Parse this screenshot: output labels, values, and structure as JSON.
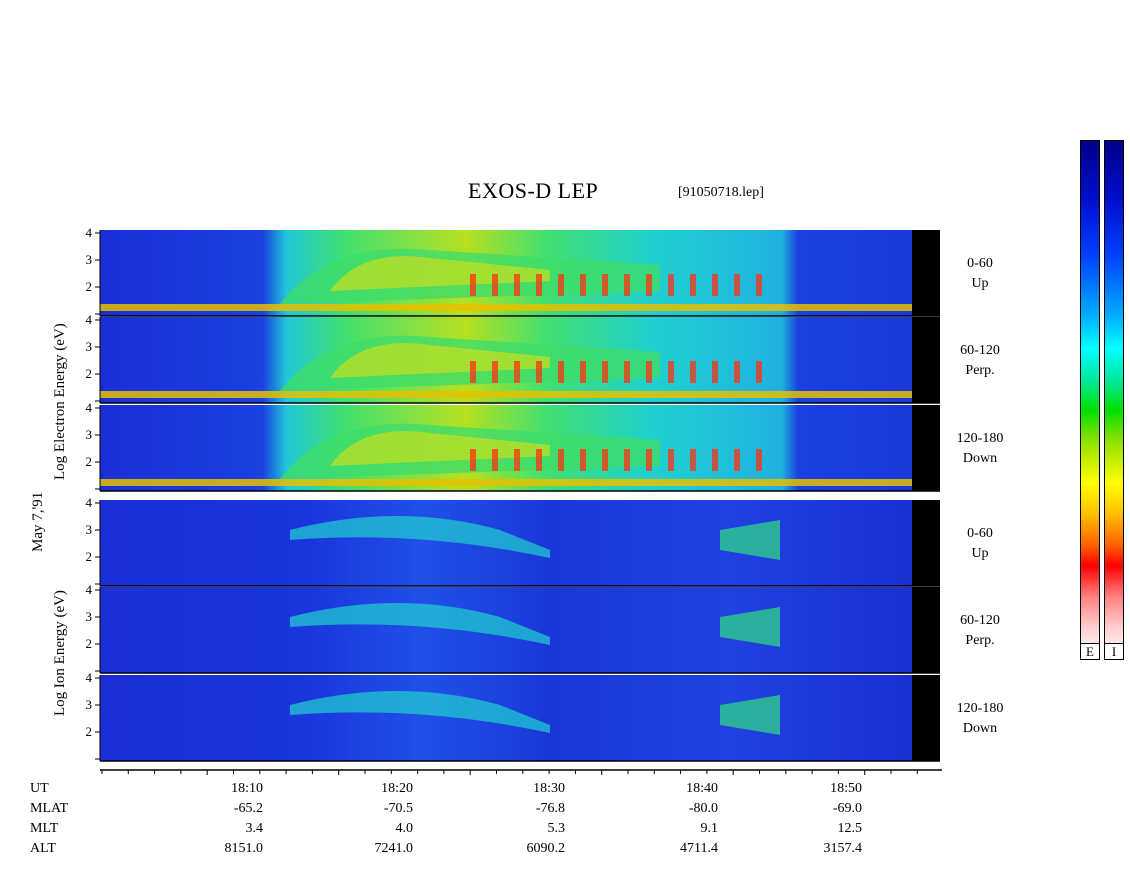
{
  "title": "EXOS-D LEP",
  "file_name": "[91050718.lep]",
  "date_label": "May  7,'91",
  "electron_ylabel": "Log  Electron  Energy (eV)",
  "ion_ylabel": "Log  Ion  Energy (eV)",
  "colors": {
    "black_band": "#000000",
    "panel_low": "#1a2fd6",
    "panel_mid": "#1bd7d0",
    "panel_high": "#e8e800",
    "panel_peak": "#ff2a00"
  },
  "chart_data": {
    "type": "heatmap",
    "x_axis": {
      "label": "UT",
      "tick_labels": [
        "18:10",
        "18:20",
        "18:30",
        "18:40",
        "18:50"
      ]
    },
    "y_ticks": [
      "4",
      "3",
      "2"
    ],
    "panels": [
      {
        "species": "Electron",
        "pitch_angle": "0-60",
        "direction": "Up"
      },
      {
        "species": "Electron",
        "pitch_angle": "60-120",
        "direction": "Perp."
      },
      {
        "species": "Electron",
        "pitch_angle": "120-180",
        "direction": "Down"
      },
      {
        "species": "Ion",
        "pitch_angle": "0-60",
        "direction": "Up"
      },
      {
        "species": "Ion",
        "pitch_angle": "60-120",
        "direction": "Perp."
      },
      {
        "species": "Ion",
        "pitch_angle": "120-180",
        "direction": "Down"
      }
    ],
    "ephemeris": [
      {
        "label": "MLAT",
        "values": [
          "-65.2",
          "-70.5",
          "-76.8",
          "-80.0",
          "-69.0"
        ]
      },
      {
        "label": "MLT",
        "values": [
          "3.4",
          "4.0",
          "5.3",
          "9.1",
          "12.5"
        ]
      },
      {
        "label": "ALT",
        "values": [
          "8151.0",
          "7241.0",
          "6090.2",
          "4711.4",
          "3157.4"
        ]
      }
    ],
    "colorbars": [
      "E",
      "I"
    ]
  }
}
